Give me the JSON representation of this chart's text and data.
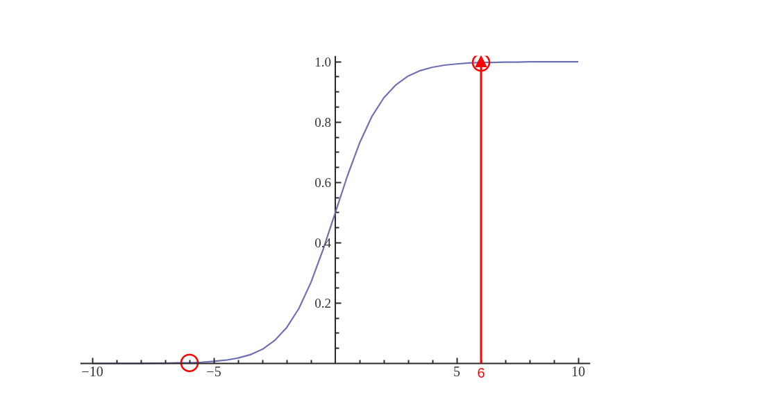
{
  "chart_data": {
    "type": "line",
    "x": [
      -10,
      -9.5,
      -9,
      -8.5,
      -8,
      -7.5,
      -7,
      -6.5,
      -6,
      -5.5,
      -5,
      -4.5,
      -4,
      -3.5,
      -3,
      -2.5,
      -2,
      -1.5,
      -1,
      -0.5,
      0,
      0.5,
      1,
      1.5,
      2,
      2.5,
      3,
      3.5,
      4,
      4.5,
      5,
      5.5,
      6,
      6.5,
      7,
      7.5,
      8,
      8.5,
      9,
      9.5,
      10
    ],
    "series": [
      {
        "color": "#7070b4",
        "values": [
          0.0,
          0.0,
          0.0,
          0.0,
          0.0,
          0.001,
          0.001,
          0.002,
          0.002,
          0.004,
          0.007,
          0.011,
          0.018,
          0.029,
          0.047,
          0.076,
          0.119,
          0.182,
          0.269,
          0.378,
          0.5,
          0.622,
          0.731,
          0.818,
          0.881,
          0.924,
          0.953,
          0.971,
          0.982,
          0.989,
          0.993,
          0.996,
          0.998,
          0.998,
          0.999,
          0.999,
          1.0,
          1.0,
          1.0,
          1.0,
          1.0
        ]
      },
      {
        "type": "scatter",
        "marker": "circle",
        "color": "#ff0000",
        "x": [
          -6,
          6
        ],
        "values": [
          0.002,
          0.998
        ]
      }
    ],
    "xlim": [
      -10.5,
      10.5
    ],
    "ylim": [
      0,
      1.02
    ],
    "xticks": [
      {
        "value": -10,
        "label": "−10"
      },
      {
        "value": -9,
        "label": null
      },
      {
        "value": -8,
        "label": null
      },
      {
        "value": -7,
        "label": null
      },
      {
        "value": -6,
        "label": null
      },
      {
        "value": -5,
        "label": "−5"
      },
      {
        "value": -4,
        "label": null
      },
      {
        "value": -3,
        "label": null
      },
      {
        "value": -2,
        "label": null
      },
      {
        "value": -1,
        "label": null
      },
      {
        "value": 1,
        "label": null
      },
      {
        "value": 2,
        "label": null
      },
      {
        "value": 3,
        "label": null
      },
      {
        "value": 4,
        "label": null
      },
      5,
      {
        "value": 6,
        "label": null
      },
      {
        "value": 7,
        "label": null
      },
      {
        "value": 8,
        "label": null
      },
      {
        "value": 9,
        "label": null
      },
      10
    ],
    "yticks": [
      {
        "value": 0.05,
        "label": null
      },
      {
        "value": 0.1,
        "label": null
      },
      {
        "value": 0.15,
        "label": null
      },
      0.2,
      {
        "value": 0.25,
        "label": null
      },
      {
        "value": 0.3,
        "label": null
      },
      {
        "value": 0.35,
        "label": null
      },
      0.4,
      {
        "value": 0.45,
        "label": null
      },
      {
        "value": 0.5,
        "label": null
      },
      {
        "value": 0.55,
        "label": null
      },
      0.6,
      {
        "value": 0.65,
        "label": null
      },
      {
        "value": 0.7,
        "label": null
      },
      {
        "value": 0.75,
        "label": null
      },
      0.8,
      {
        "value": 0.85,
        "label": null
      },
      {
        "value": 0.9,
        "label": null
      },
      {
        "value": 0.95,
        "label": null
      },
      {
        "value": 1,
        "label": "1.0"
      }
    ],
    "ref_lines": [
      {
        "axis": "x",
        "value": 6,
        "label": "6",
        "color": "#ff0000"
      }
    ]
  }
}
